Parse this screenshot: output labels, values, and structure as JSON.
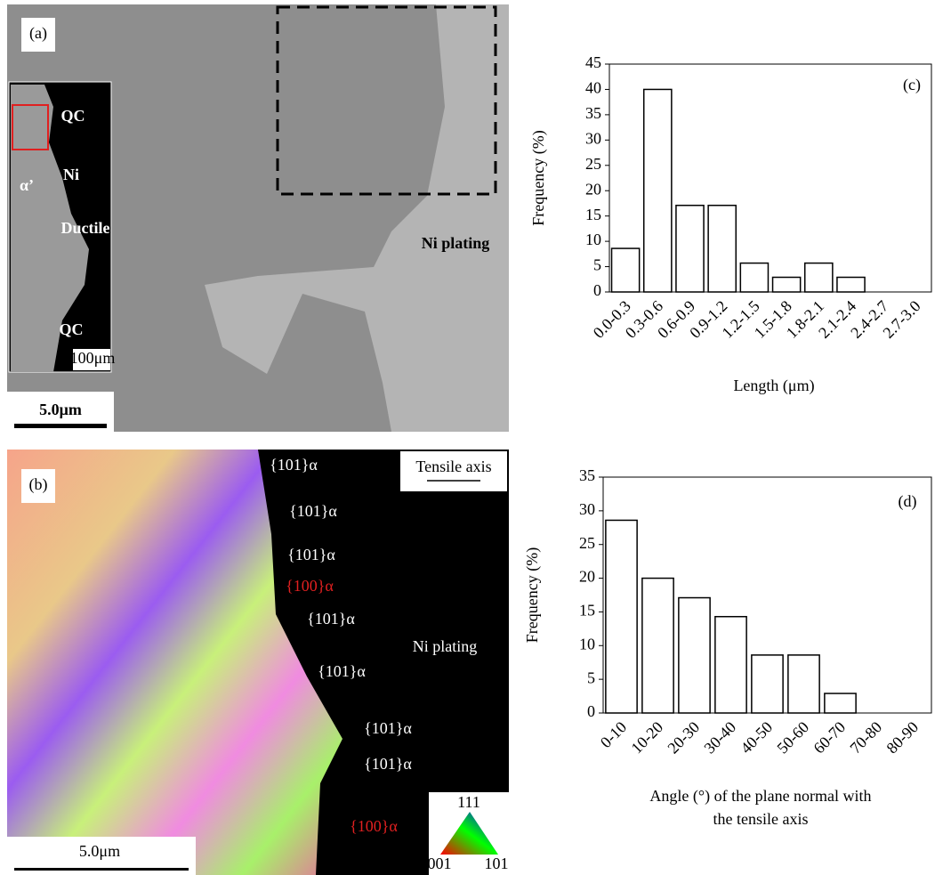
{
  "chart_data": [
    {
      "type": "bar",
      "annotation": "(c)",
      "y_label": "Frequency (%)",
      "x_label": [
        "Length (μm)"
      ],
      "categories": [
        "0.0-0.3",
        "0.3-0.6",
        "0.6-0.9",
        "0.9-1.2",
        "1.2-1.5",
        "1.5-1.8",
        "1.8-2.1",
        "2.1-2.4",
        "2.4-2.7",
        "2.7-3.0"
      ],
      "values": [
        8.6,
        40,
        17.1,
        17.1,
        5.7,
        2.9,
        5.7,
        2.9,
        0,
        0
      ],
      "color": "#ffffff",
      "ylim": [
        0,
        45
      ],
      "yticks": [
        0,
        5,
        10,
        15,
        20,
        25,
        30,
        35,
        40,
        45
      ]
    },
    {
      "type": "bar",
      "annotation": "(d)",
      "y_label": "Frequency (%)",
      "x_label": [
        "Angle (°) of the plane normal with",
        "the tensile axis"
      ],
      "categories": [
        "0-10",
        "10-20",
        "20-30",
        "30-40",
        "40-50",
        "50-60",
        "60-70",
        "70-80",
        "80-90"
      ],
      "values": [
        28.6,
        20,
        17.1,
        14.3,
        8.6,
        8.6,
        2.9,
        0,
        0
      ],
      "color": "#ffffff",
      "ylim": [
        0,
        35
      ],
      "yticks": [
        0,
        5,
        10,
        15,
        20,
        25,
        30,
        35
      ]
    }
  ],
  "panels": [
    {
      "labels": [
        {
          "text": "(a)",
          "color": "#000"
        },
        {
          "text": "QC",
          "color": "#fff"
        },
        {
          "text": "Ni",
          "color": "#fff"
        },
        {
          "text": "α’",
          "color": "#fff"
        },
        {
          "text": "Ductile",
          "color": "#fff"
        },
        {
          "text": "QC",
          "color": "#fff"
        },
        {
          "text": "100μm",
          "color": "#000"
        },
        {
          "text": "5.0μm",
          "color": "#000"
        },
        {
          "text": "Ni plating",
          "color": "#000"
        }
      ]
    },
    {
      "labels": [
        {
          "text": "(b)",
          "color": "#000"
        },
        {
          "text": "Tensile axis",
          "color": "#000"
        },
        {
          "text": "{101}α",
          "color": "#fff"
        },
        {
          "text": "{101}α",
          "color": "#fff"
        },
        {
          "text": "{101}α",
          "color": "#fff"
        },
        {
          "text": "{100}α",
          "color": "#e02020"
        },
        {
          "text": "{101}α",
          "color": "#fff"
        },
        {
          "text": "{101}α",
          "color": "#fff"
        },
        {
          "text": "{101}α",
          "color": "#fff"
        },
        {
          "text": "{101}α",
          "color": "#fff"
        },
        {
          "text": "{100}α",
          "color": "#e02020"
        },
        {
          "text": "Ni plating",
          "color": "#fff"
        },
        {
          "text": "111",
          "color": "#000"
        },
        {
          "text": "001",
          "color": "#000"
        },
        {
          "text": "101",
          "color": "#000"
        },
        {
          "text": "5.0μm",
          "color": "#000"
        }
      ]
    }
  ]
}
